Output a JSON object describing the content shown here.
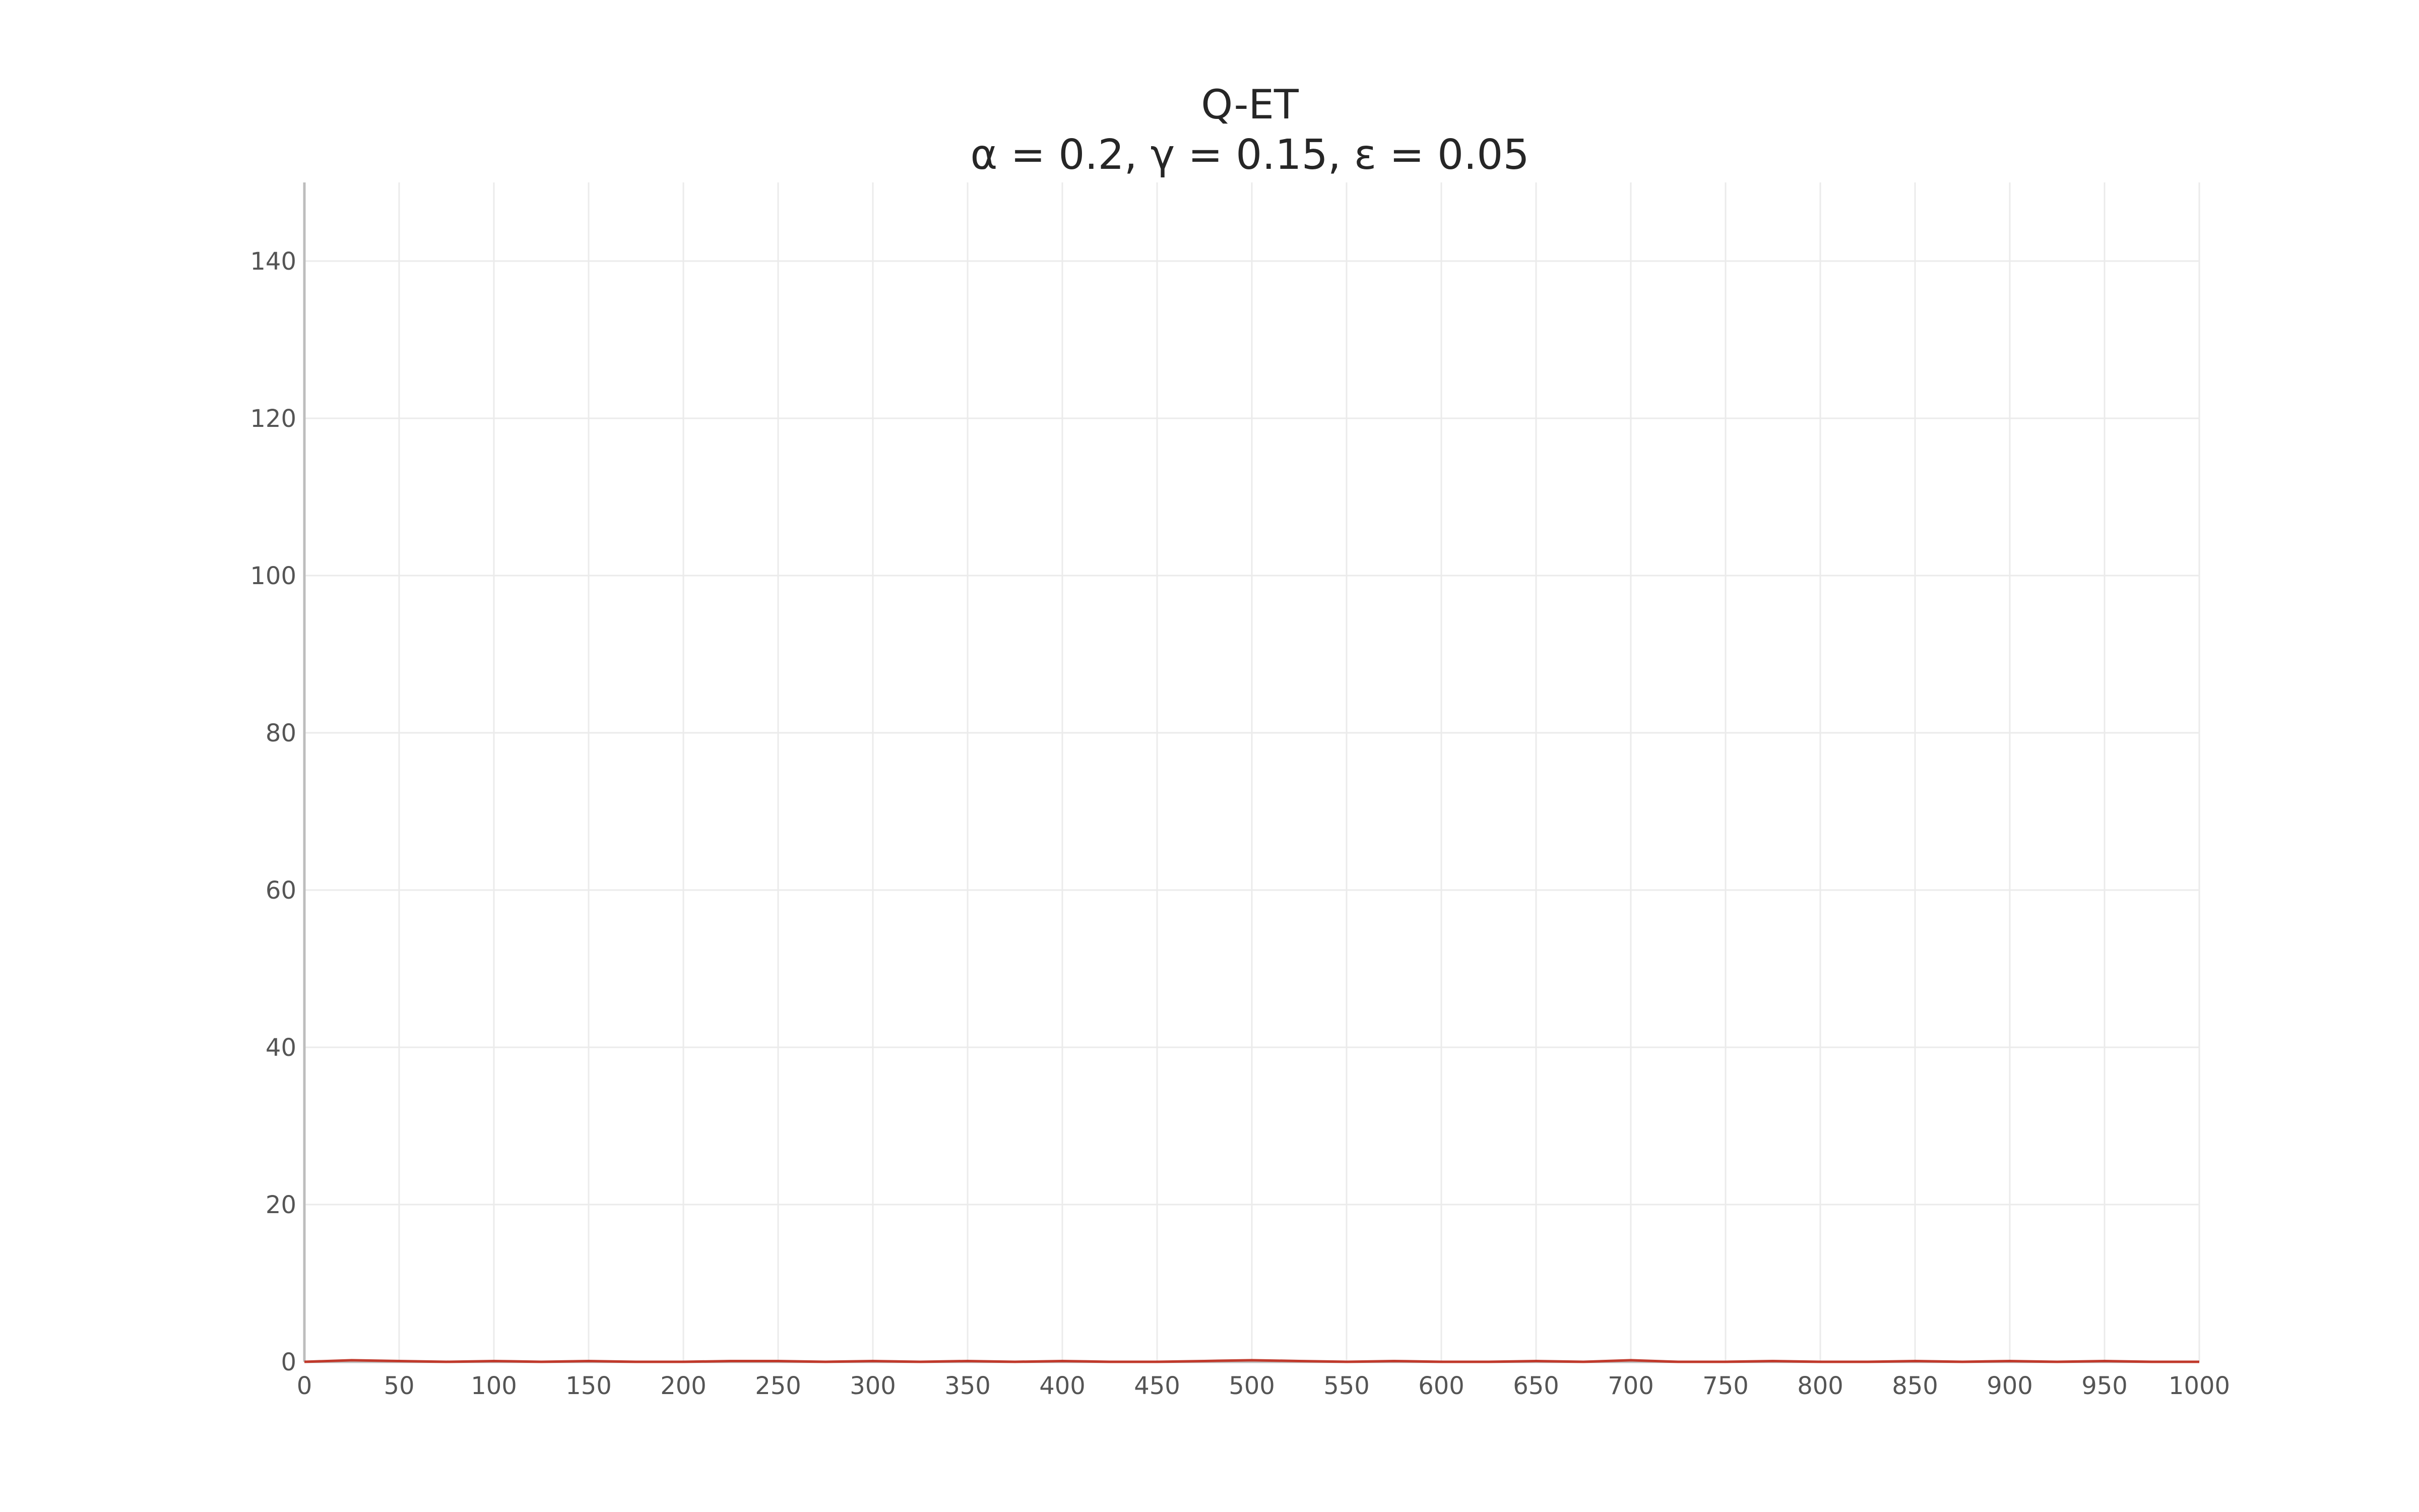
{
  "chart_data": {
    "type": "line",
    "title": "Q-ET",
    "subtitle": "α = 0.2, γ = 0.15, ε = 0.05",
    "xlabel": "",
    "ylabel": "",
    "xlim": [
      0,
      1000
    ],
    "ylim": [
      0,
      150
    ],
    "x_ticks": [
      0,
      50,
      100,
      150,
      200,
      250,
      300,
      350,
      400,
      450,
      500,
      550,
      600,
      650,
      700,
      750,
      800,
      850,
      900,
      950,
      1000
    ],
    "y_ticks": [
      0,
      20,
      40,
      60,
      80,
      100,
      120,
      140
    ],
    "grid": true,
    "legend": "none",
    "colors": {
      "line": "#c0392b",
      "grid": "#ebebeb",
      "axis": "#bdbdbd",
      "text": "#262626",
      "tick_text": "#555555"
    },
    "series": [
      {
        "x": [
          0,
          25,
          50,
          75,
          100,
          125,
          150,
          175,
          200,
          225,
          250,
          275,
          300,
          325,
          350,
          375,
          400,
          425,
          450,
          475,
          500,
          525,
          550,
          575,
          600,
          625,
          650,
          675,
          700,
          725,
          750,
          775,
          800,
          825,
          850,
          875,
          900,
          925,
          950,
          975,
          1000
        ],
        "values": [
          0,
          0.2,
          0.1,
          0,
          0.1,
          0,
          0.1,
          0,
          0,
          0.1,
          0.1,
          0,
          0.1,
          0,
          0.1,
          0,
          0.1,
          0,
          0,
          0.1,
          0.2,
          0.1,
          0,
          0.1,
          0,
          0,
          0.1,
          0,
          0.2,
          0,
          0,
          0.1,
          0,
          0,
          0.1,
          0,
          0.1,
          0,
          0.1,
          0,
          0
        ]
      }
    ]
  }
}
